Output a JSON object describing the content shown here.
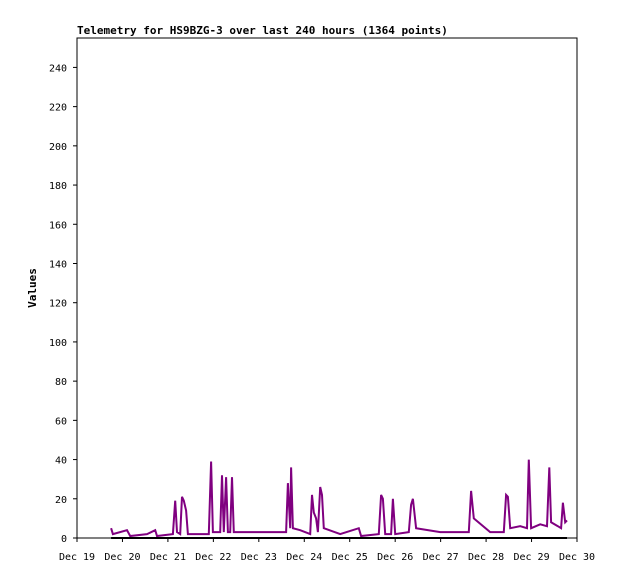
{
  "chart_data": {
    "type": "line",
    "title": "Telemetry for HS9BZG-3 over last 240 hours (1364 points)",
    "y_label": "Values",
    "xlim": [
      19,
      30
    ],
    "xticks": [
      {
        "value": 19,
        "label": "Dec 19"
      },
      {
        "value": 20,
        "label": "Dec 20"
      },
      {
        "value": 21,
        "label": "Dec 21"
      },
      {
        "value": 22,
        "label": "Dec 22"
      },
      {
        "value": 23,
        "label": "Dec 23"
      },
      {
        "value": 24,
        "label": "Dec 24"
      },
      {
        "value": 25,
        "label": "Dec 25"
      },
      {
        "value": 26,
        "label": "Dec 26"
      },
      {
        "value": 27,
        "label": "Dec 27"
      },
      {
        "value": 28,
        "label": "Dec 28"
      },
      {
        "value": 29,
        "label": "Dec 29"
      },
      {
        "value": 30,
        "label": "Dec 30"
      }
    ],
    "ylim": [
      0,
      255
    ],
    "yticks": [
      0,
      20,
      40,
      60,
      80,
      100,
      120,
      140,
      160,
      180,
      200,
      220,
      240
    ],
    "grid": false,
    "series": [
      {
        "color": "#800080",
        "x": [
          19.75,
          19.79,
          20.1,
          20.17,
          20.54,
          20.72,
          20.76,
          21.11,
          21.16,
          21.2,
          21.27,
          21.31,
          21.35,
          21.4,
          21.44,
          21.71,
          21.9,
          21.95,
          21.99,
          22.15,
          22.19,
          22.23,
          22.28,
          22.32,
          22.37,
          22.41,
          22.45,
          23.03,
          23.6,
          23.64,
          23.69,
          23.71,
          23.75,
          23.91,
          24.13,
          24.17,
          24.21,
          24.26,
          24.3,
          24.35,
          24.39,
          24.43,
          24.79,
          25.2,
          25.25,
          25.64,
          25.69,
          25.73,
          25.78,
          25.91,
          25.95,
          26.0,
          26.3,
          26.35,
          26.39,
          26.46,
          26.99,
          27.62,
          27.67,
          27.73,
          28.09,
          28.39,
          28.44,
          28.48,
          28.53,
          28.75,
          28.9,
          28.94,
          28.99,
          29.19,
          29.34,
          29.39,
          29.43,
          29.58,
          29.65,
          29.69,
          29.74,
          29.78
        ],
        "values": [
          5,
          2,
          4,
          1,
          2,
          4,
          1,
          2,
          19,
          3,
          2,
          21,
          19,
          14,
          2,
          2,
          2,
          39,
          3,
          3,
          32,
          3,
          31,
          3,
          3,
          31,
          3,
          3,
          3,
          28,
          5,
          36,
          5,
          4,
          2,
          22,
          13,
          10,
          3,
          26,
          22,
          5,
          2,
          5,
          1,
          2,
          22,
          20,
          2,
          2,
          20,
          2,
          3,
          17,
          20,
          5,
          3,
          3,
          24,
          10,
          3,
          3,
          22,
          21,
          5,
          6,
          5,
          40,
          5,
          7,
          6,
          36,
          8,
          6,
          5,
          18,
          8,
          9
        ]
      },
      {
        "color": "#000000",
        "x": [
          19.75,
          29.78
        ],
        "values": [
          0,
          0
        ]
      }
    ]
  }
}
